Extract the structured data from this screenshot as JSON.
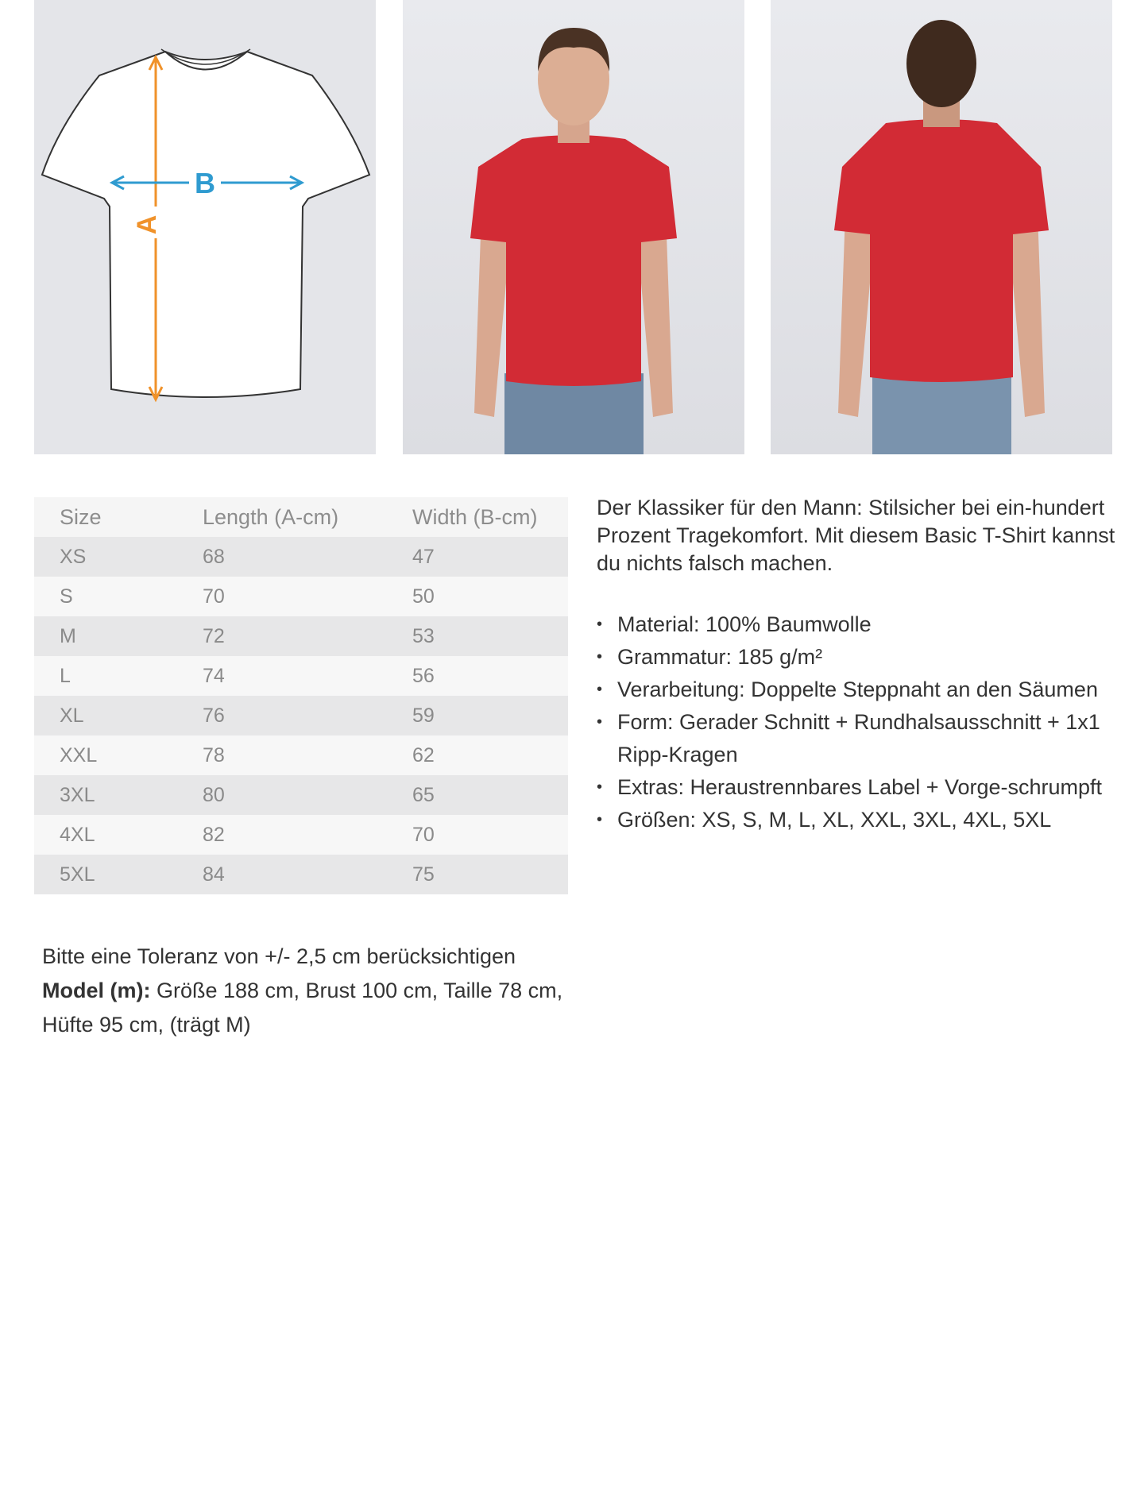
{
  "diagram": {
    "label_a": "A",
    "label_b": "B",
    "colors": {
      "a_arrow": "#f0922a",
      "b_arrow": "#2f9bd0"
    }
  },
  "photos": [
    {
      "view": "front",
      "shirt_color": "#d22b35"
    },
    {
      "view": "back",
      "shirt_color": "#d22b35"
    }
  ],
  "size_table": {
    "headers": [
      "Size",
      "Length (A-cm)",
      "Width (B-cm)"
    ],
    "rows": [
      [
        "XS",
        "68",
        "47"
      ],
      [
        "S",
        "70",
        "50"
      ],
      [
        "M",
        "72",
        "53"
      ],
      [
        "L",
        "74",
        "56"
      ],
      [
        "XL",
        "76",
        "59"
      ],
      [
        "XXL",
        "78",
        "62"
      ],
      [
        "3XL",
        "80",
        "65"
      ],
      [
        "4XL",
        "82",
        "70"
      ],
      [
        "5XL",
        "84",
        "75"
      ]
    ]
  },
  "description": "Der Klassiker für den Mann: Stilsicher bei ein-hundert Prozent Tragekomfort. Mit diesem Basic T-Shirt kannst du nichts falsch machen.",
  "features": [
    "Material: 100% Baumwolle",
    "Grammatur: 185 g/m²",
    "Verarbeitung: Doppelte Steppnaht an den Säumen",
    "Form: Gerader Schnitt + Rundhalsausschnitt + 1x1 Ripp-Kragen",
    "Extras: Heraustrennbares Label + Vorge-schrumpft",
    "Größen: XS, S, M, L, XL, XXL, 3XL, 4XL, 5XL"
  ],
  "tolerance": "Bitte eine Toleranz von +/- 2,5 cm berücksichtigen",
  "model_label": "Model (m):",
  "model_text": " Größe 188 cm, Brust 100 cm, Taille 78 cm, Hüfte 95 cm, (trägt M)"
}
